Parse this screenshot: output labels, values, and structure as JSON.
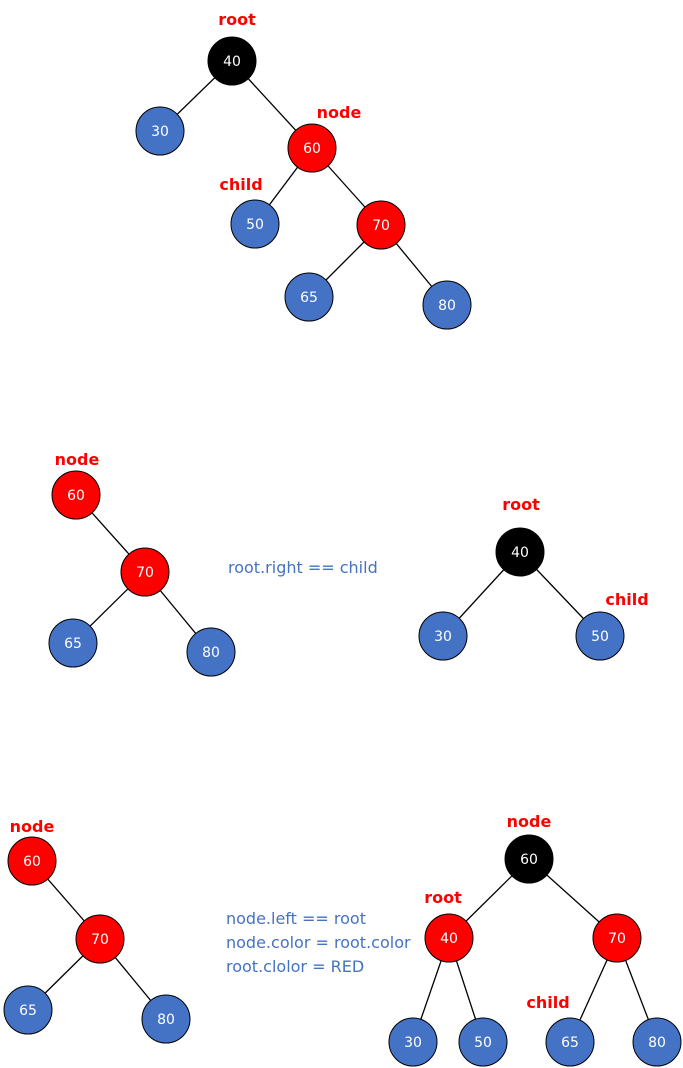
{
  "colors": {
    "black_node": "#000000",
    "red_node": "#ff0000",
    "blue_node": "#4472c4",
    "tag_text": "#ff0000",
    "note_text": "#4472c4"
  },
  "diagram1": {
    "tags": {
      "root": "root",
      "node": "node",
      "child": "child"
    },
    "nodes": {
      "n40": "40",
      "n30": "30",
      "n60": "60",
      "n50": "50",
      "n70": "70",
      "n65": "65",
      "n80": "80"
    }
  },
  "diagram2": {
    "left": {
      "tags": {
        "node": "node"
      },
      "nodes": {
        "n60": "60",
        "n70": "70",
        "n65": "65",
        "n80": "80"
      }
    },
    "note": "root.right == child",
    "right": {
      "tags": {
        "root": "root",
        "child": "child"
      },
      "nodes": {
        "n40": "40",
        "n30": "30",
        "n50": "50"
      }
    }
  },
  "diagram3": {
    "left": {
      "tags": {
        "node": "node"
      },
      "nodes": {
        "n60": "60",
        "n70": "70",
        "n65": "65",
        "n80": "80"
      }
    },
    "notes": [
      "node.left == root",
      "node.color = root.color",
      "root.clolor = RED"
    ],
    "right": {
      "tags": {
        "node": "node",
        "root": "root",
        "child": "child"
      },
      "nodes": {
        "n60": "60",
        "n40": "40",
        "n70": "70",
        "n30": "30",
        "n50": "50",
        "n65": "65",
        "n80": "80"
      }
    }
  }
}
